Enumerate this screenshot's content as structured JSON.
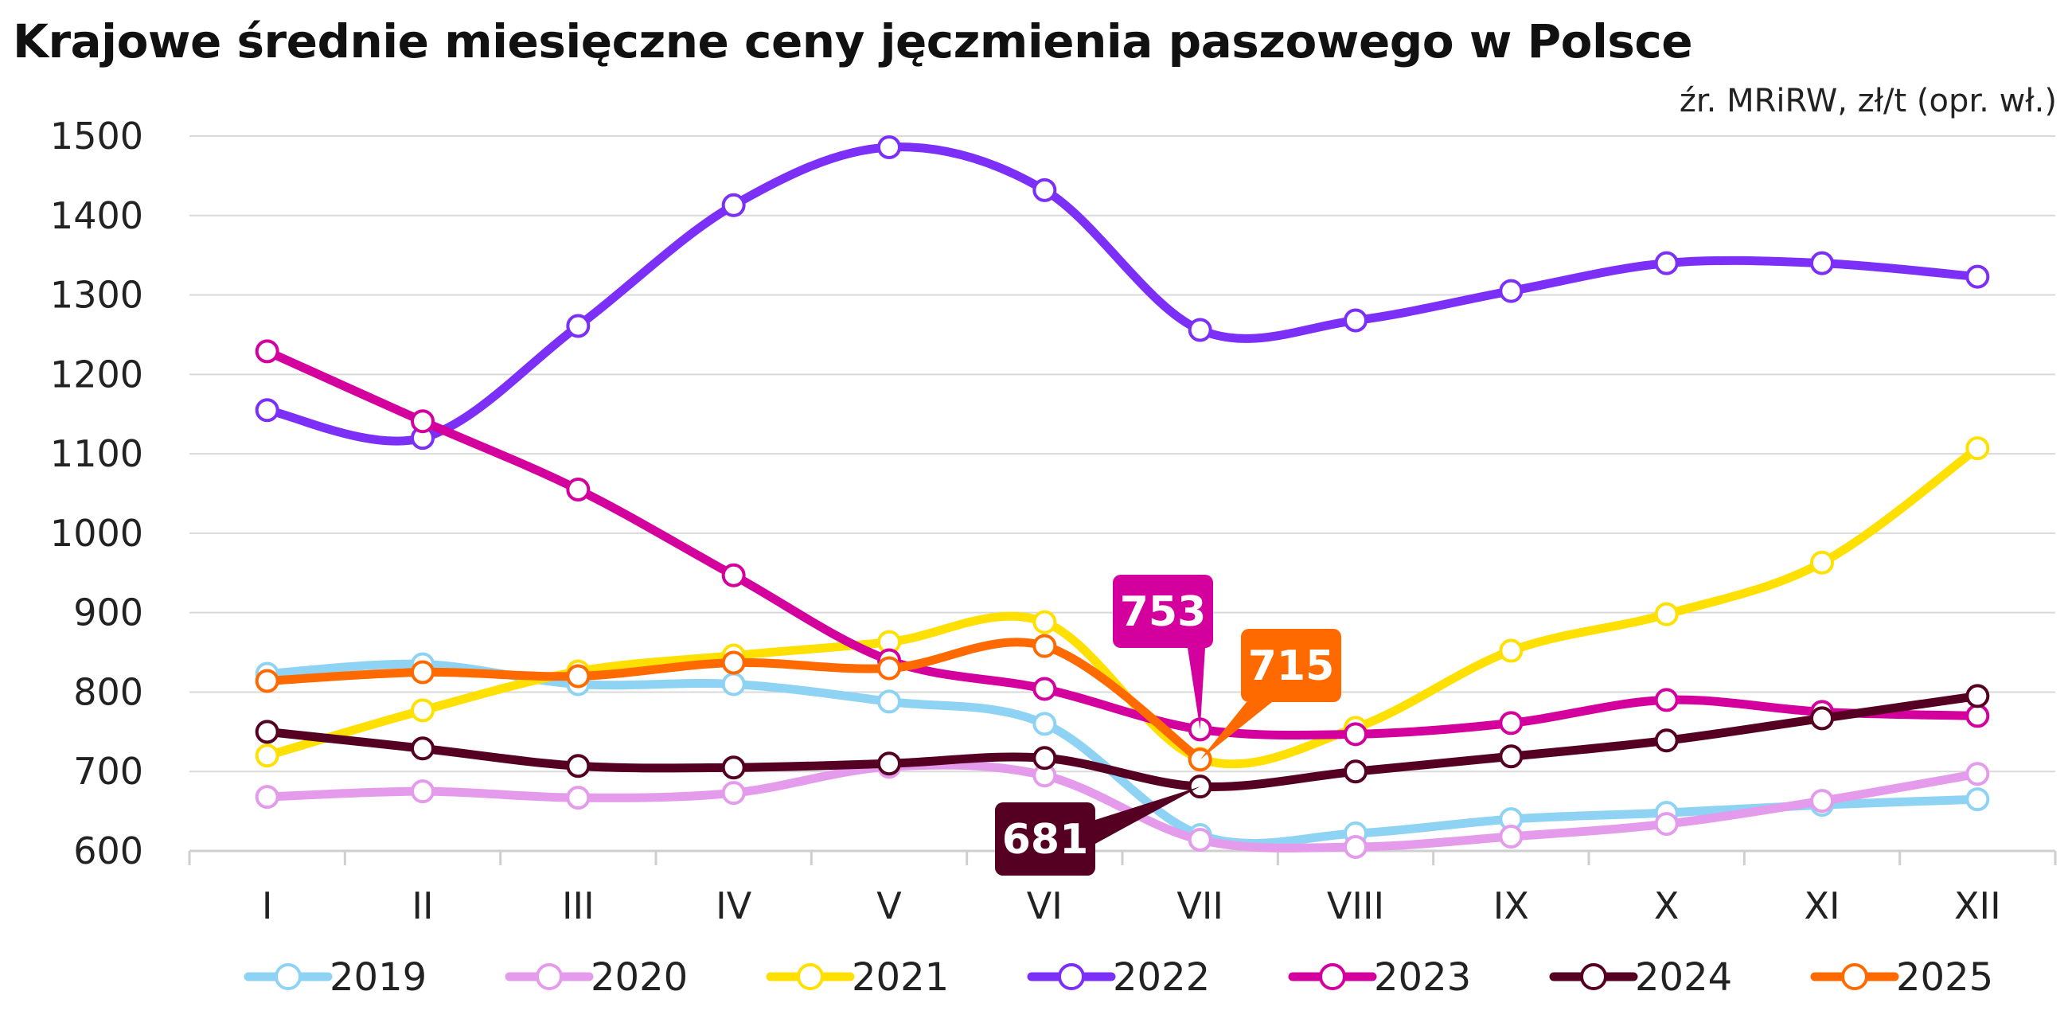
{
  "chart_data": {
    "type": "line",
    "title": "Krajowe średnie miesięczne ceny jęczmienia paszowego w Polsce",
    "source_note": "źr. MRiRW, zł/t (opr. wł.)",
    "xlabel": "",
    "ylabel": "",
    "ylim": [
      600,
      1500
    ],
    "y_ticks": [
      "1500",
      "1400",
      "1300",
      "1200",
      "1100",
      "1000",
      "900",
      "800",
      "700",
      "600"
    ],
    "grid": true,
    "legend_position": "bottom",
    "categories": [
      "I",
      "II",
      "III",
      "IV",
      "V",
      "VI",
      "VII",
      "VIII",
      "IX",
      "X",
      "XI",
      "XII"
    ],
    "series": [
      {
        "name": "2019",
        "color": "#8fd3f4",
        "values": [
          823,
          835,
          810,
          810,
          788,
          760,
          620,
          622,
          640,
          648,
          658,
          665
        ]
      },
      {
        "name": "2020",
        "color": "#e59bec",
        "values": [
          668,
          675,
          667,
          673,
          706,
          695,
          614,
          605,
          618,
          634,
          663,
          697
        ]
      },
      {
        "name": "2021",
        "color": "#ffe000",
        "values": [
          720,
          777,
          826,
          846,
          863,
          888,
          716,
          755,
          852,
          898,
          963,
          1107
        ]
      },
      {
        "name": "2022",
        "color": "#7b2ff7",
        "values": [
          1155,
          1120,
          1261,
          1413,
          1486,
          1432,
          1256,
          1268,
          1305,
          1340,
          1340,
          1323
        ]
      },
      {
        "name": "2023",
        "color": "#d4009e",
        "values": [
          1229,
          1141,
          1055,
          947,
          840,
          804,
          753,
          747,
          761,
          790,
          775,
          770
        ]
      },
      {
        "name": "2024",
        "color": "#550022",
        "values": [
          750,
          729,
          707,
          705,
          710,
          717,
          681,
          700,
          719,
          739,
          767,
          795
        ]
      },
      {
        "name": "2025",
        "color": "#ff6a00",
        "values": [
          814,
          825,
          820,
          837,
          830,
          858,
          715,
          null,
          null,
          null,
          null,
          null
        ]
      }
    ],
    "annotations": [
      {
        "series": "2023",
        "month": "VII",
        "label": "753",
        "color": "#d4009e"
      },
      {
        "series": "2025",
        "month": "VII",
        "label": "715",
        "color": "#ff6a00"
      },
      {
        "series": "2024",
        "month": "VII",
        "label": "681",
        "color": "#550022"
      }
    ]
  }
}
